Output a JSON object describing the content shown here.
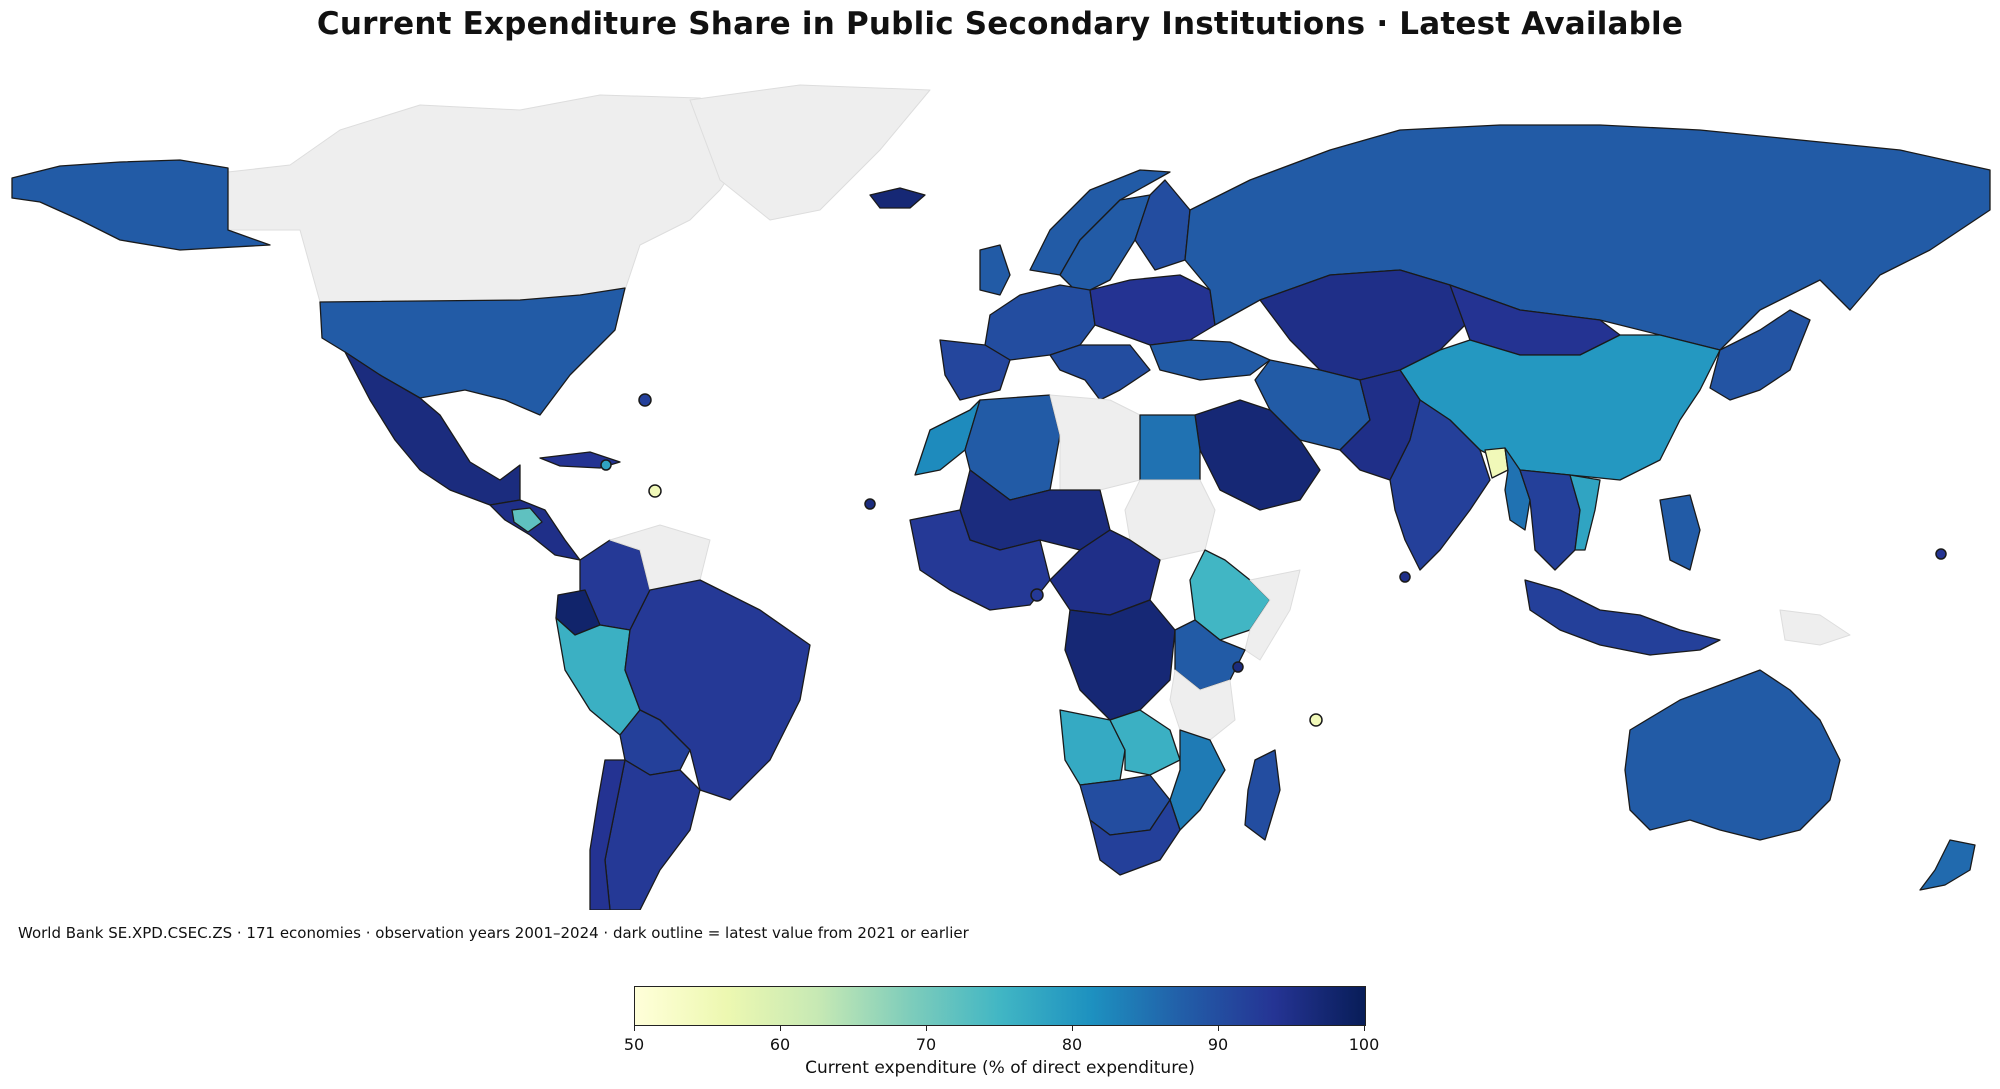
{
  "title": "Current Expenditure Share in Public Secondary Institutions · Latest Available",
  "footnote": "World Bank SE.XPD.CSEC.ZS · 171 economies · observation years 2001–2024 · dark outline = latest value from 2021 or earlier",
  "colorbar": {
    "label": "Current expenditure (% of direct expenditure)",
    "min": 50,
    "max": 100,
    "ticks": [
      "50",
      "60",
      "70",
      "80",
      "90",
      "100"
    ],
    "colormap": "YlGnBu"
  },
  "colors": {
    "no_data": "#eeeeee",
    "outline_old": "#1a1a1a",
    "outline_recent": "#aaaaaa"
  },
  "map_data": {
    "regions": [
      {
        "name": "Canada",
        "value": null
      },
      {
        "name": "Greenland",
        "value": null
      },
      {
        "name": "Alaska (United States)",
        "value": 88
      },
      {
        "name": "United States",
        "value": 88
      },
      {
        "name": "Mexico",
        "value": 96
      },
      {
        "name": "Central America",
        "value": 95
      },
      {
        "name": "Guatemala",
        "value": 72
      },
      {
        "name": "Caribbean islands",
        "value": 94
      },
      {
        "name": "Colombia",
        "value": 93
      },
      {
        "name": "Venezuela",
        "value": null
      },
      {
        "name": "Ecuador",
        "value": 98
      },
      {
        "name": "Peru",
        "value": 76
      },
      {
        "name": "Brazil",
        "value": 93
      },
      {
        "name": "Bolivia",
        "value": 92
      },
      {
        "name": "Argentina",
        "value": 93
      },
      {
        "name": "Chile",
        "value": 94
      },
      {
        "name": "Iceland",
        "value": 97
      },
      {
        "name": "Norway",
        "value": 88
      },
      {
        "name": "Sweden",
        "value": 88
      },
      {
        "name": "Finland",
        "value": 90
      },
      {
        "name": "United Kingdom",
        "value": 88
      },
      {
        "name": "Western Europe",
        "value": 90
      },
      {
        "name": "Eastern Europe",
        "value": 94
      },
      {
        "name": "Spain & Portugal",
        "value": 91
      },
      {
        "name": "Italy & Balkans",
        "value": 90
      },
      {
        "name": "Turkey",
        "value": 88
      },
      {
        "name": "Russia",
        "value": 88
      },
      {
        "name": "Kazakhstan & Central Asia",
        "value": 95
      },
      {
        "name": "Mongolia",
        "value": 94
      },
      {
        "name": "China",
        "value": 80
      },
      {
        "name": "Korea & Japan",
        "value": 89
      },
      {
        "name": "Iran",
        "value": 88
      },
      {
        "name": "Afghanistan & Pakistan",
        "value": 95
      },
      {
        "name": "Saudi Arabia & Gulf",
        "value": 97
      },
      {
        "name": "India",
        "value": 92
      },
      {
        "name": "Bangladesh",
        "value": 55
      },
      {
        "name": "Myanmar",
        "value": 85
      },
      {
        "name": "Thailand & Indochina",
        "value": 92
      },
      {
        "name": "Vietnam",
        "value": 78
      },
      {
        "name": "Indonesia",
        "value": 92
      },
      {
        "name": "Philippines",
        "value": 88
      },
      {
        "name": "Papua New Guinea",
        "value": null
      },
      {
        "name": "Australia",
        "value": 88
      },
      {
        "name": "New Zealand",
        "value": 86
      },
      {
        "name": "Morocco",
        "value": 82
      },
      {
        "name": "Algeria",
        "value": 88
      },
      {
        "name": "Libya",
        "value": null
      },
      {
        "name": "Egypt",
        "value": 85
      },
      {
        "name": "Sudan",
        "value": null
      },
      {
        "name": "Mali & Niger",
        "value": 96
      },
      {
        "name": "West Africa",
        "value": 93
      },
      {
        "name": "Chad & Central Africa",
        "value": 95
      },
      {
        "name": "Ethiopia",
        "value": 75
      },
      {
        "name": "Somalia",
        "value": null
      },
      {
        "name": "DR Congo",
        "value": 97
      },
      {
        "name": "Kenya & Uganda",
        "value": 88
      },
      {
        "name": "Tanzania",
        "value": null
      },
      {
        "name": "Angola",
        "value": 77
      },
      {
        "name": "Zambia",
        "value": 76
      },
      {
        "name": "Mozambique",
        "value": 84
      },
      {
        "name": "Namibia & Botswana",
        "value": 90
      },
      {
        "name": "South Africa",
        "value": 92
      },
      {
        "name": "Madagascar",
        "value": 90
      }
    ],
    "markers": [
      {
        "name": "Small island economy",
        "value": 92
      },
      {
        "name": "Small island economy",
        "value": 78
      },
      {
        "name": "Small island economy",
        "value": 55
      },
      {
        "name": "Small island economy",
        "value": 96
      },
      {
        "name": "Small island economy",
        "value": 93
      },
      {
        "name": "Small island economy",
        "value": 95
      },
      {
        "name": "Small island economy",
        "value": 55
      },
      {
        "name": "Small island economy",
        "value": 94
      },
      {
        "name": "Small island economy",
        "value": 96
      }
    ]
  }
}
